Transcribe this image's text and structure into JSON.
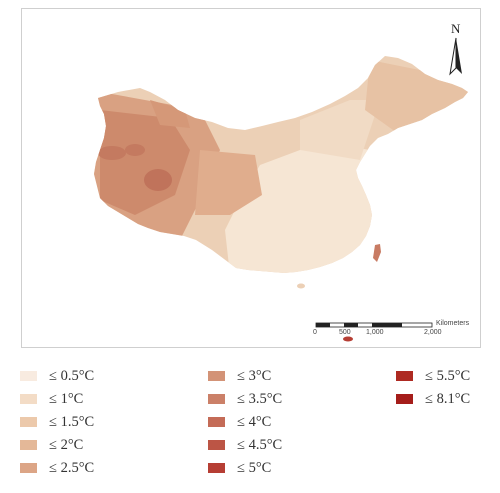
{
  "map": {
    "north_label": "N",
    "scale_bar": {
      "ticks": [
        "0",
        "500",
        "1,000",
        "2,000"
      ],
      "unit_label": "Kilometers"
    }
  },
  "legend": {
    "columns": [
      [
        {
          "label": "≤ 0.5°C",
          "color": "#f8ebe0"
        },
        {
          "label": "≤ 1°C",
          "color": "#f3dcc6"
        },
        {
          "label": "≤ 1.5°C",
          "color": "#ecc9ab"
        },
        {
          "label": "≤ 2°C",
          "color": "#e4b898"
        },
        {
          "label": "≤ 2.5°C",
          "color": "#dca586"
        }
      ],
      [
        {
          "label": "≤ 3°C",
          "color": "#d39377"
        },
        {
          "label": "≤ 3.5°C",
          "color": "#cb8068"
        },
        {
          "label": "≤ 4°C",
          "color": "#c46b57"
        },
        {
          "label": "≤ 4.5°C",
          "color": "#bc5545"
        },
        {
          "label": "≤ 5°C",
          "color": "#b63e34"
        }
      ],
      [
        {
          "label": "≤ 5.5°C",
          "color": "#ae2a22"
        },
        {
          "label": "≤ 8.1°C",
          "color": "#a51d1a"
        }
      ]
    ]
  }
}
